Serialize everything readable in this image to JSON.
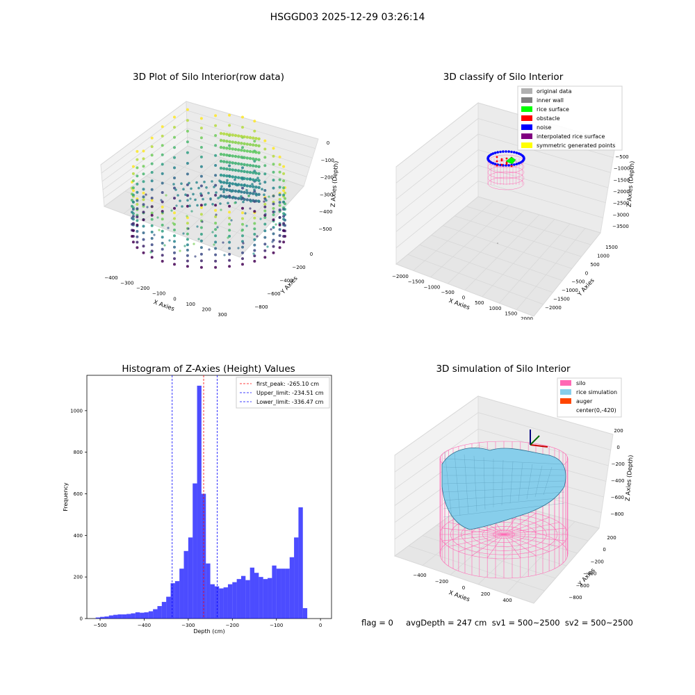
{
  "figure_title": "HSGGD03 2025-12-29 03:26:14",
  "footer": "flag = 0     avgDepth = 247 cm  sv1 = 500~2500  sv2 = 500~2500",
  "chart_data": [
    {
      "type": "scatter",
      "subtype": "3d-scatter",
      "title": "3D Plot of Silo Interior(row data)",
      "xlabel": "X Axies",
      "ylabel": "Y Axies",
      "zlabel": "Z Axies (Depth)",
      "xticks": [
        "−400",
        "−300",
        "−200",
        "−100",
        "0",
        "100",
        "200",
        "300"
      ],
      "yticks": [
        "0",
        "−200",
        "−400",
        "−600",
        "−800"
      ],
      "zticks": [
        "0",
        "−100",
        "−200",
        "−300",
        "−400",
        "−500"
      ],
      "colormap": "viridis",
      "grid": true
    },
    {
      "type": "scatter",
      "subtype": "3d-scatter",
      "title": "3D classify of Silo Interior",
      "xlabel": "X Axies",
      "ylabel": "Y Axies",
      "zlabel": "Z Axies (Depth)",
      "xticks": [
        "−2000",
        "−1500",
        "−1000",
        "−500",
        "0",
        "500",
        "1000",
        "1500",
        "2000"
      ],
      "yticks": [
        "1500",
        "1000",
        "500",
        "0",
        "−500",
        "−1000",
        "−1500",
        "−2000"
      ],
      "zticks": [
        "−500",
        "−1000",
        "−1500",
        "−2000",
        "−2500",
        "−3000",
        "−3500"
      ],
      "legend_position": "top-right",
      "legend": [
        {
          "label": "original data",
          "color": "#b0b0b0"
        },
        {
          "label": "inner wall",
          "color": "#808080"
        },
        {
          "label": "rice surface",
          "color": "#00ff00"
        },
        {
          "label": "obstacle",
          "color": "#ff0000"
        },
        {
          "label": "noise",
          "color": "#0000ff"
        },
        {
          "label": "interpolated rice surface",
          "color": "#800080"
        },
        {
          "label": "symmetric generated points",
          "color": "#ffff00"
        }
      ],
      "grid": true
    },
    {
      "type": "bar",
      "subtype": "histogram",
      "title": "Histogram of Z-Axies (Height) Values",
      "xlabel": "Depth (cm)",
      "ylabel": "Frequency",
      "xlim": [
        -530,
        25
      ],
      "ylim": [
        0,
        1170
      ],
      "xticks": [
        -500,
        -400,
        -300,
        -200,
        -100,
        0
      ],
      "yticks": [
        0,
        200,
        400,
        600,
        800,
        1000
      ],
      "bin_width": 10,
      "bin_start": -510,
      "values": [
        5,
        8,
        10,
        15,
        18,
        20,
        20,
        22,
        25,
        30,
        28,
        30,
        35,
        45,
        60,
        80,
        105,
        170,
        180,
        240,
        325,
        390,
        650,
        1120,
        600,
        265,
        165,
        155,
        145,
        150,
        165,
        175,
        190,
        205,
        185,
        245,
        220,
        200,
        190,
        195,
        255,
        240,
        240,
        240,
        295,
        390,
        535,
        50
      ],
      "bar_color": "#0000ff",
      "lines": [
        {
          "label": "first_peak: -265.10 cm",
          "x": -265.1,
          "color": "#ff0000"
        },
        {
          "label": "Upper_limit: -234.51 cm",
          "x": -234.51,
          "color": "#0000ff"
        },
        {
          "label": "Lower_limit: -336.47 cm",
          "x": -336.47,
          "color": "#0000ff"
        }
      ],
      "legend_position": "top-right"
    },
    {
      "type": "area",
      "subtype": "3d-surface",
      "title": "3D simulation of Silo Interior",
      "xlabel": "X Axies",
      "ylabel": "Y Axies",
      "zlabel": "Z Axies (Depth)",
      "xticks": [
        "−400",
        "−200",
        "0",
        "200",
        "400"
      ],
      "yticks": [
        "200",
        "0",
        "−200",
        "−400",
        "−600",
        "−800"
      ],
      "zticks": [
        "200",
        "0",
        "−200",
        "−400",
        "−600",
        "−800"
      ],
      "legend_position": "top-right",
      "legend": [
        {
          "label": "silo",
          "color": "#ff69b4"
        },
        {
          "label": "rice simulation",
          "color": "#87ceeb"
        },
        {
          "label": "auger",
          "color": "#ff4500"
        },
        {
          "label": "center(0,-420)",
          "color": "#ffffff"
        }
      ],
      "grid": true
    }
  ]
}
